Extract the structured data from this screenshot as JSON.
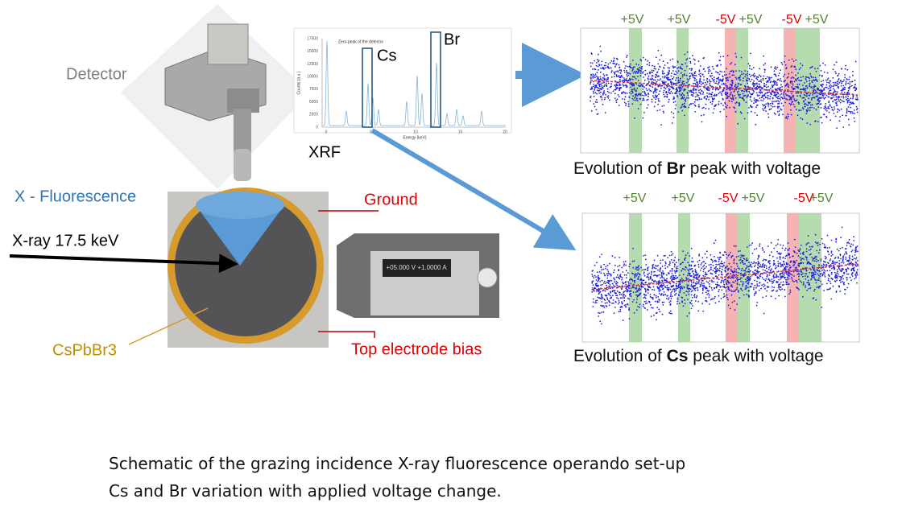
{
  "labels": {
    "detector": "Detector",
    "x_fluorescence": "X - Fluorescence",
    "xray": "X-ray 17.5 keV",
    "sample": "CsPbBr3",
    "ground": "Ground",
    "bias": "Top electrode bias"
  },
  "xrf_inset": {
    "label": "XRF",
    "peaks": [
      "Cs",
      "Br"
    ],
    "annotation": "Zero-peak of the detector",
    "x_axis": "Energy (keV)",
    "y_axis": "Counts (a.u.)",
    "yticks": [
      "17500",
      "15000",
      "12500",
      "10000",
      "7500",
      "5000",
      "2500",
      "0"
    ],
    "xticks": [
      "0",
      "5",
      "10",
      "15",
      "20"
    ]
  },
  "instrument_display": "+05.000 V  +1.0000 A",
  "panels": [
    {
      "voltage_labels": [
        "+5V",
        "+5V",
        "-5V",
        "+5V",
        "-5V",
        "+5V"
      ],
      "caption_prefix": "Evolution of",
      "caption_element": "Br",
      "caption_suffix": "peak with voltage"
    },
    {
      "voltage_labels": [
        "+5V",
        "+5V",
        "-5V",
        "+5V",
        "-5V",
        "+5V"
      ],
      "caption_prefix": "Evolution of",
      "caption_element": "Cs",
      "caption_suffix": "peak with voltage"
    }
  ],
  "caption": [
    "Schematic of the grazing incidence X-ray fluorescence operando set-up",
    "Cs and Br variation with applied voltage change."
  ]
}
